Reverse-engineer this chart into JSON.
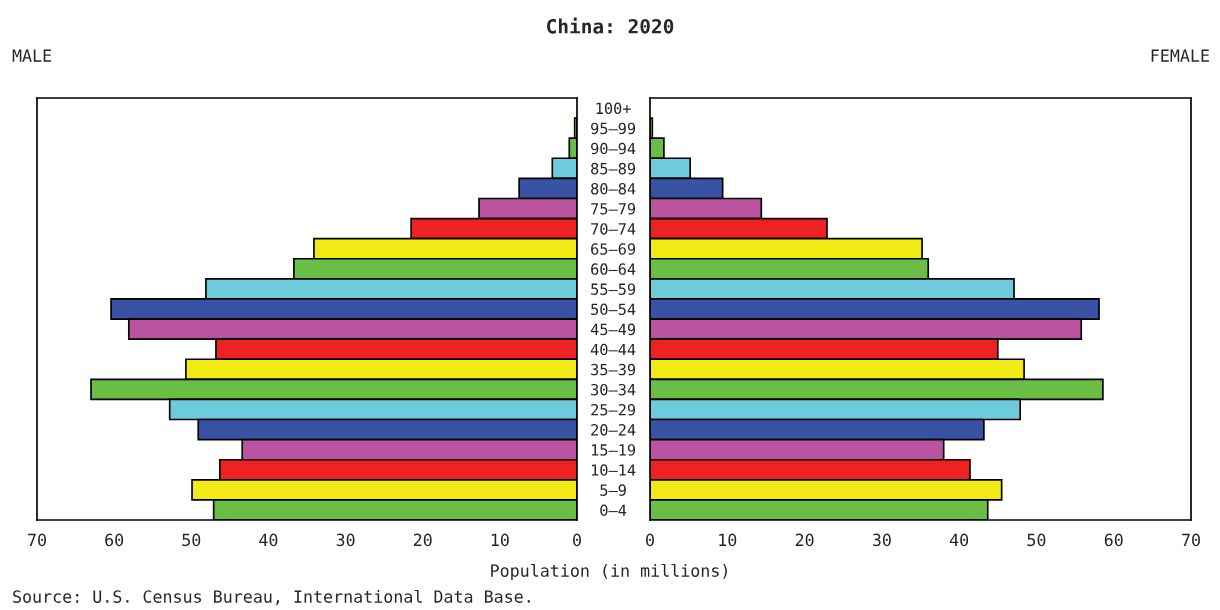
{
  "chart_data": [
    {
      "type": "bar",
      "orientation": "horizontal",
      "title": "China: 2020",
      "subtitle": "MALE",
      "xlabel": "Population (in millions)",
      "categories": [
        "100+",
        "95–99",
        "90–94",
        "85–89",
        "80–84",
        "75–79",
        "70–74",
        "65–69",
        "60–64",
        "55–59",
        "50–54",
        "45–49",
        "40–44",
        "35–39",
        "30–34",
        "25–29",
        "20–24",
        "15–19",
        "10–14",
        "5–9",
        "0–4"
      ],
      "values": [
        null,
        0.3,
        1.0,
        3.2,
        7.5,
        12.7,
        21.5,
        34.1,
        36.7,
        48.1,
        60.4,
        58.1,
        46.8,
        50.7,
        63.0,
        52.8,
        49.1,
        43.4,
        46.3,
        49.9,
        47.1
      ],
      "colors": [
        "#ee2222",
        "#f2ea14",
        "#6abd45",
        "#6dcbdb",
        "#3953a4",
        "#b9529f",
        "#ee2222",
        "#f2ea14",
        "#6abd45",
        "#6dcbdb",
        "#3953a4",
        "#b9529f",
        "#ee2222",
        "#f2ea14",
        "#6abd45",
        "#6dcbdb",
        "#3953a4",
        "#b9529f",
        "#ee2222",
        "#f2ea14",
        "#6abd45"
      ],
      "xlim": [
        70,
        0
      ],
      "xticks": [
        70,
        60,
        50,
        40,
        30,
        20,
        10,
        0
      ],
      "grid": false,
      "annotations": [
        "Source: U.S. Census Bureau, International Data Base."
      ]
    },
    {
      "type": "bar",
      "orientation": "horizontal",
      "subtitle": "FEMALE",
      "categories": [
        null,
        null,
        null,
        null,
        null,
        null,
        null,
        null,
        null,
        null,
        null,
        null,
        null,
        null,
        null,
        null,
        null,
        null,
        null,
        null,
        null
      ],
      "values": [
        null,
        0.3,
        1.8,
        5.2,
        9.4,
        14.4,
        22.9,
        35.2,
        36.0,
        47.1,
        58.1,
        55.8,
        45.0,
        48.4,
        58.6,
        47.9,
        43.2,
        38.0,
        41.4,
        45.5,
        43.7
      ],
      "colors": [
        "#ee2222",
        "#f2ea14",
        "#6abd45",
        "#6dcbdb",
        "#3953a4",
        "#b9529f",
        "#ee2222",
        "#f2ea14",
        "#6abd45",
        "#6dcbdb",
        "#3953a4",
        "#b9529f",
        "#ee2222",
        "#f2ea14",
        "#6abd45",
        "#6dcbdb",
        "#3953a4",
        "#b9529f",
        "#ee2222",
        "#f2ea14",
        "#6abd45"
      ],
      "xlim": [
        0,
        70
      ],
      "xticks": [
        0,
        10,
        20,
        30,
        40,
        50,
        60,
        70
      ],
      "grid": false,
      "tick_labels": "x"
    }
  ]
}
